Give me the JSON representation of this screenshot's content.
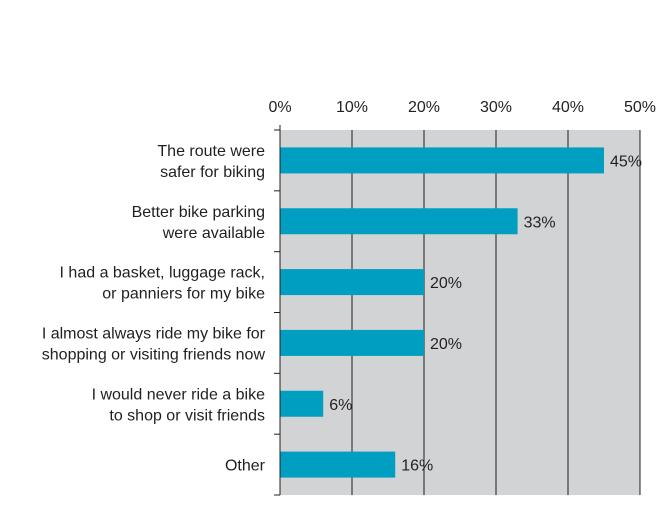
{
  "chart_data": {
    "type": "bar",
    "orientation": "horizontal",
    "categories": [
      [
        "The route were",
        "safer for biking"
      ],
      [
        "Better bike parking",
        "were available"
      ],
      [
        "I had a basket, luggage rack,",
        "or panniers for my bike"
      ],
      [
        "I almost always ride my bike for",
        "shopping or visiting friends now"
      ],
      [
        "I would never ride a bike",
        "to shop or visit friends"
      ],
      [
        "Other"
      ]
    ],
    "values": [
      45,
      33,
      20,
      20,
      6,
      16
    ],
    "value_labels": [
      "45%",
      "33%",
      "20%",
      "20%",
      "6%",
      "16%"
    ],
    "xlim": [
      0,
      50
    ],
    "xticks": [
      0,
      10,
      20,
      30,
      40,
      50
    ],
    "xtick_labels": [
      "0%",
      "10%",
      "20%",
      "30%",
      "40%",
      "50%"
    ],
    "x_axis_position": "top",
    "grid": true,
    "legend": false,
    "title": "",
    "xlabel": "",
    "ylabel": "",
    "colors": {
      "bar": "#009fc2",
      "plot_background": "#d1d3d4",
      "gridline": "#231f20",
      "text": "#231f20"
    }
  }
}
